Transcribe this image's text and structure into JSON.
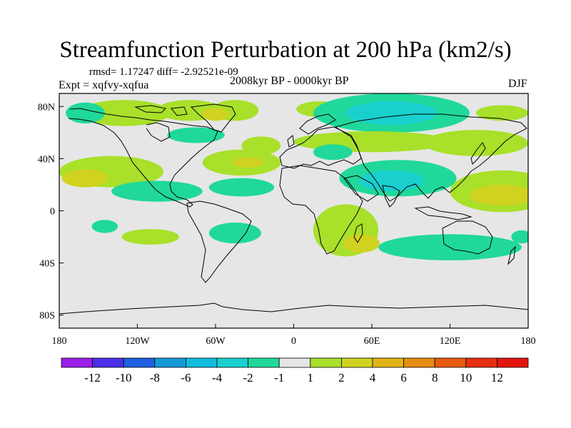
{
  "title": "Streamfunction Perturbation at 200 hPa (km2/s)",
  "stats": "rmsd= 1.17247 diff= -2.92521e-09",
  "experiment": "Expt = xqfvy-xqfua",
  "period": "2008kyr BP - 0000kyr BP",
  "season": "DJF",
  "map": {
    "projection": "cylindrical-equidistant",
    "lon_range": [
      -180,
      180
    ],
    "lat_range": [
      -90,
      90
    ],
    "x_ticks": [
      {
        "lon": -180,
        "label": "180"
      },
      {
        "lon": -120,
        "label": "120W"
      },
      {
        "lon": -60,
        "label": "60W"
      },
      {
        "lon": 0,
        "label": "0"
      },
      {
        "lon": 60,
        "label": "60E"
      },
      {
        "lon": 120,
        "label": "120E"
      },
      {
        "lon": 180,
        "label": "180"
      }
    ],
    "y_ticks": [
      {
        "lat": 80,
        "label": "80N"
      },
      {
        "lat": 40,
        "label": "40N"
      },
      {
        "lat": 0,
        "label": "0"
      },
      {
        "lat": -40,
        "label": "40S"
      },
      {
        "lat": -80,
        "label": "80S"
      }
    ],
    "background_color": "#e6e6e6",
    "anomalies": [
      {
        "lon": -130,
        "lat": 75,
        "rlon": 35,
        "rlat": 10,
        "level": 1
      },
      {
        "lon": -80,
        "lat": 77,
        "rlon": 25,
        "rlat": 8,
        "level": 1
      },
      {
        "lon": -45,
        "lat": 77,
        "rlon": 18,
        "rlat": 8,
        "level": 1
      },
      {
        "lon": -60,
        "lat": 74,
        "rlon": 10,
        "rlat": 5,
        "level": 2
      },
      {
        "lon": -160,
        "lat": 75,
        "rlon": 15,
        "rlat": 8,
        "level": -1
      },
      {
        "lon": -75,
        "lat": 58,
        "rlon": 22,
        "rlat": 6,
        "level": -1
      },
      {
        "lon": -25,
        "lat": 50,
        "rlon": 15,
        "rlat": 7,
        "level": 1
      },
      {
        "lon": -140,
        "lat": 30,
        "rlon": 40,
        "rlat": 12,
        "level": 1
      },
      {
        "lon": -160,
        "lat": 25,
        "rlon": 18,
        "rlat": 7,
        "level": 2
      },
      {
        "lon": -40,
        "lat": 37,
        "rlon": 30,
        "rlat": 10,
        "level": 1
      },
      {
        "lon": -35,
        "lat": 37,
        "rlon": 12,
        "rlat": 4,
        "level": 2
      },
      {
        "lon": -105,
        "lat": 15,
        "rlon": 35,
        "rlat": 8,
        "level": -1
      },
      {
        "lon": -40,
        "lat": 18,
        "rlon": 25,
        "rlat": 7,
        "level": -1
      },
      {
        "lon": 20,
        "lat": 78,
        "rlon": 18,
        "rlat": 6,
        "level": 1
      },
      {
        "lon": 75,
        "lat": 75,
        "rlon": 60,
        "rlat": 15,
        "level": -1
      },
      {
        "lon": 75,
        "lat": 75,
        "rlon": 35,
        "rlat": 9,
        "level": -2
      },
      {
        "lon": 60,
        "lat": 53,
        "rlon": 60,
        "rlat": 8,
        "level": 1
      },
      {
        "lon": 140,
        "lat": 52,
        "rlon": 40,
        "rlat": 10,
        "level": 1
      },
      {
        "lon": 160,
        "lat": 75,
        "rlon": 20,
        "rlat": 6,
        "level": 1
      },
      {
        "lon": 30,
        "lat": 45,
        "rlon": 15,
        "rlat": 6,
        "level": -1
      },
      {
        "lon": 80,
        "lat": 25,
        "rlon": 45,
        "rlat": 14,
        "level": -1
      },
      {
        "lon": 75,
        "lat": 23,
        "rlon": 25,
        "rlat": 8,
        "level": -2
      },
      {
        "lon": 160,
        "lat": 15,
        "rlon": 40,
        "rlat": 16,
        "level": 1
      },
      {
        "lon": 160,
        "lat": 12,
        "rlon": 25,
        "rlat": 8,
        "level": 2
      },
      {
        "lon": 40,
        "lat": -15,
        "rlon": 25,
        "rlat": 20,
        "level": 1
      },
      {
        "lon": 52,
        "lat": -25,
        "rlon": 14,
        "rlat": 7,
        "level": 2
      },
      {
        "lon": 120,
        "lat": -28,
        "rlon": 55,
        "rlat": 10,
        "level": -1
      },
      {
        "lon": 175,
        "lat": -20,
        "rlon": 8,
        "rlat": 5,
        "level": -1
      },
      {
        "lon": -145,
        "lat": -12,
        "rlon": 10,
        "rlat": 5,
        "level": -1
      },
      {
        "lon": -110,
        "lat": -20,
        "rlon": 22,
        "rlat": 6,
        "level": 1
      },
      {
        "lon": -45,
        "lat": -17,
        "rlon": 20,
        "rlat": 8,
        "level": -1
      }
    ]
  },
  "colorbar": {
    "labels": [
      "-12",
      "-10",
      "-8",
      "-6",
      "-4",
      "-2",
      "-1",
      "1",
      "2",
      "4",
      "6",
      "8",
      "10",
      "12"
    ],
    "colors": [
      "#9b1ee8",
      "#4a2ee8",
      "#1f5fe0",
      "#1499d9",
      "#12bde0",
      "#1ad0cf",
      "#20d89b",
      "#e6e6e6",
      "#a8e02a",
      "#cfd320",
      "#e3b416",
      "#e68c12",
      "#e85a10",
      "#e62e10",
      "#e3150e"
    ]
  }
}
